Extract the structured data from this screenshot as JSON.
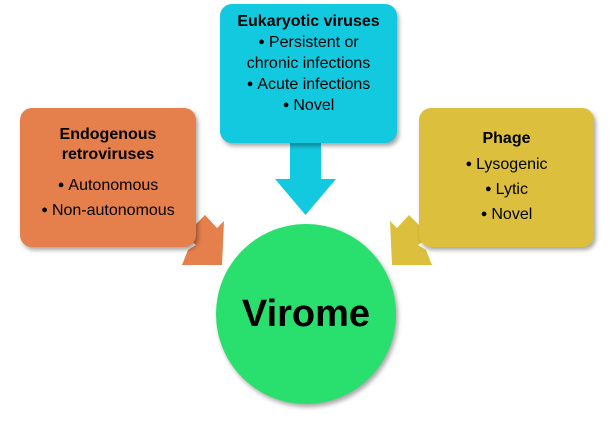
{
  "colors": {
    "eukaryotic": "#13c9e0",
    "endogenous": "#e57f4c",
    "phage": "#dcc03d",
    "virome": "#29e06f"
  },
  "boxes": {
    "eukaryotic": {
      "title": "Eukaryotic viruses",
      "items": [
        "Persistent or",
        "chronic infections",
        "Acute infections",
        "Novel"
      ]
    },
    "endogenous": {
      "title_line1": "Endogenous",
      "title_line2": "retroviruses",
      "items": [
        "Autonomous",
        "Non-autonomous"
      ]
    },
    "phage": {
      "title": "Phage",
      "items": [
        "Lysogenic",
        "Lytic",
        "Novel"
      ]
    }
  },
  "center": {
    "label": "Virome"
  },
  "bullet": "●"
}
